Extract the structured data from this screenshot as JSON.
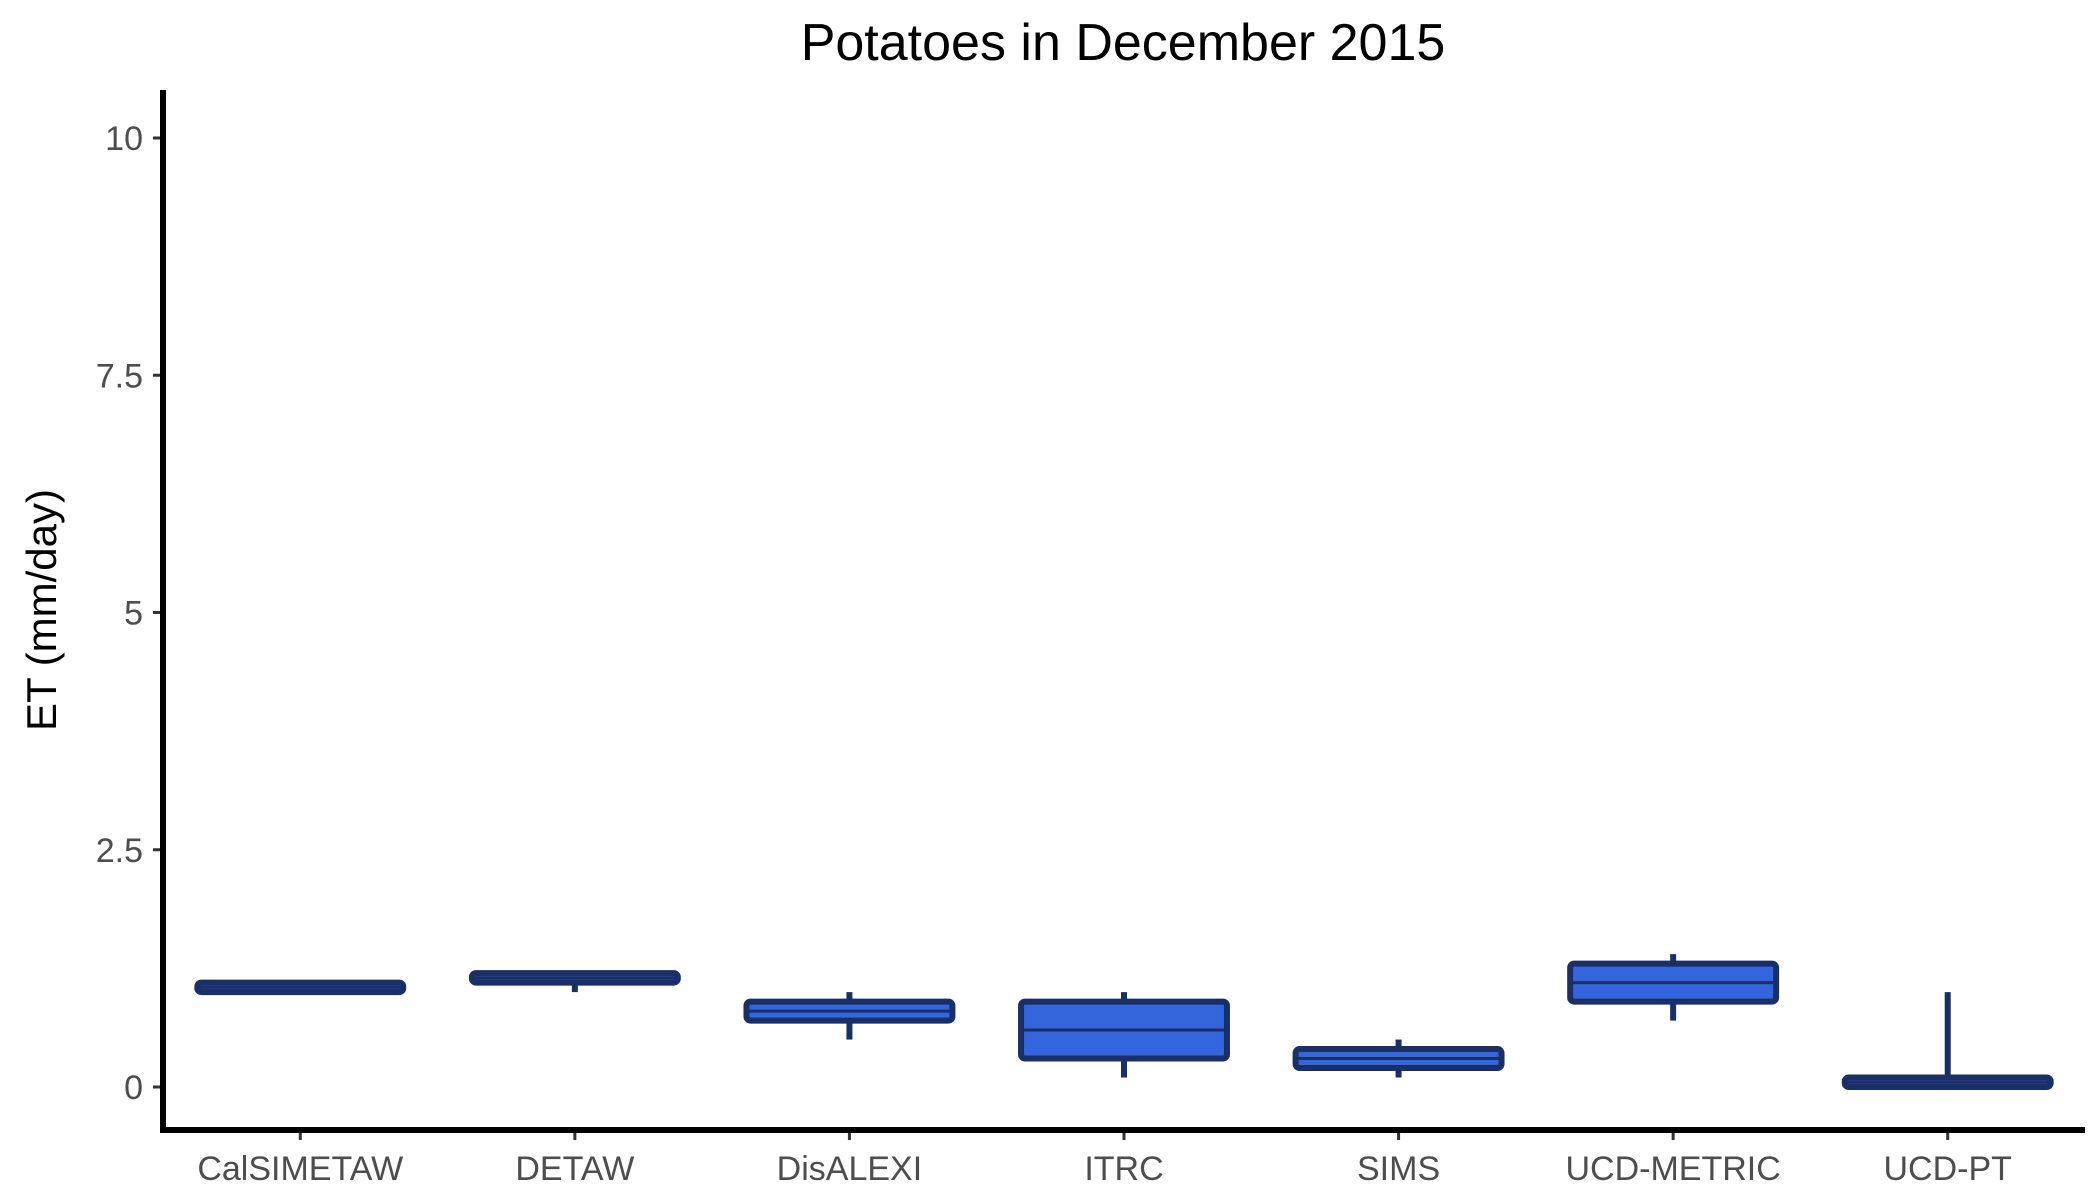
{
  "chart_data": {
    "type": "boxplot",
    "title": "Potatoes in December 2015",
    "xlabel": "",
    "ylabel": "ET (mm/day)",
    "ylim": [
      -0.5,
      10.5
    ],
    "yticks": [
      0,
      2.5,
      5,
      7.5,
      10
    ],
    "ytick_labels": [
      "0",
      "2.5",
      "5",
      "7.5",
      "10"
    ],
    "categories": [
      "CalSIMETAW",
      "DETAW",
      "DisALEXI",
      "ITRC",
      "SIMS",
      "UCD-METRIC",
      "UCD-PT"
    ],
    "boxes": [
      {
        "min": 1.0,
        "q1": 1.0,
        "median": 1.05,
        "q3": 1.1,
        "max": 1.1
      },
      {
        "min": 1.0,
        "q1": 1.1,
        "median": 1.15,
        "q3": 1.2,
        "max": 1.2
      },
      {
        "min": 0.5,
        "q1": 0.7,
        "median": 0.8,
        "q3": 0.9,
        "max": 1.0
      },
      {
        "min": 0.1,
        "q1": 0.3,
        "median": 0.6,
        "q3": 0.9,
        "max": 1.0
      },
      {
        "min": 0.1,
        "q1": 0.2,
        "median": 0.3,
        "q3": 0.4,
        "max": 0.5
      },
      {
        "min": 0.7,
        "q1": 0.9,
        "median": 1.1,
        "q3": 1.3,
        "max": 1.4
      },
      {
        "min": 0.0,
        "q1": 0.0,
        "median": 0.05,
        "q3": 0.1,
        "max": 1.0
      }
    ],
    "fill_color": "#3366dd",
    "line_color": "#1a2f66",
    "grid": false,
    "legend": "none"
  }
}
